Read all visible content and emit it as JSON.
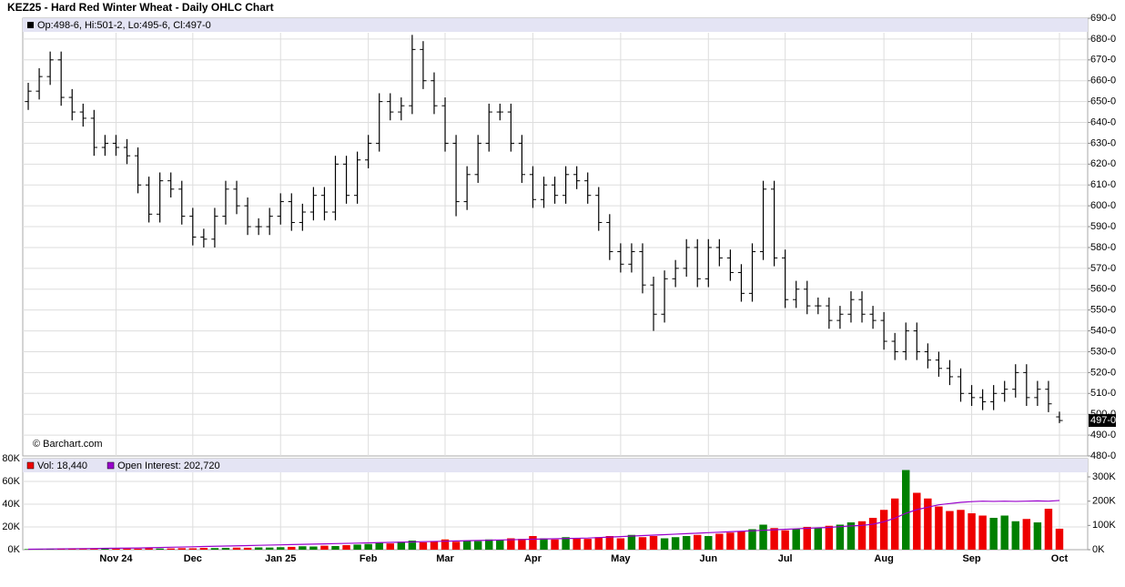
{
  "chart_data": [
    {
      "type": "ohlc",
      "title": "KEZ25 - Hard Red Winter Wheat - Daily OHLC Chart",
      "legend_text": "Op:498-6, Hi:501-2, Lo:495-6, Cl:497-0",
      "watermark": "© Barchart.com",
      "last_label": "497-0",
      "color": "#000000",
      "grid": true,
      "ylim": [
        480,
        690
      ],
      "yticks": [
        {
          "value": 480,
          "label": "480-0"
        },
        {
          "value": 490,
          "label": "490-0"
        },
        {
          "value": 500,
          "label": "500-0"
        },
        {
          "value": 510,
          "label": "510-0"
        },
        {
          "value": 520,
          "label": "520-0"
        },
        {
          "value": 530,
          "label": "530-0"
        },
        {
          "value": 540,
          "label": "540-0"
        },
        {
          "value": 550,
          "label": "550-0"
        },
        {
          "value": 560,
          "label": "560-0"
        },
        {
          "value": 570,
          "label": "570-0"
        },
        {
          "value": 580,
          "label": "580-0"
        },
        {
          "value": 590,
          "label": "590-0"
        },
        {
          "value": 600,
          "label": "600-0"
        },
        {
          "value": 610,
          "label": "610-0"
        },
        {
          "value": 620,
          "label": "620-0"
        },
        {
          "value": 630,
          "label": "630-0"
        },
        {
          "value": 640,
          "label": "640-0"
        },
        {
          "value": 650,
          "label": "650-0"
        },
        {
          "value": 660,
          "label": "660-0"
        },
        {
          "value": 670,
          "label": "670-0"
        },
        {
          "value": 680,
          "label": "680-0"
        },
        {
          "value": 690,
          "label": "690-0"
        }
      ],
      "open": [
        650,
        655,
        662,
        670,
        652,
        645,
        642,
        628,
        630,
        628,
        624,
        610,
        596,
        612,
        608,
        595,
        585,
        584,
        595,
        608,
        600,
        590,
        590,
        595,
        602,
        592,
        597,
        605,
        597,
        620,
        605,
        622,
        630,
        650,
        645,
        648,
        675,
        660,
        648,
        630,
        602,
        615,
        630,
        645,
        645,
        630,
        615,
        603,
        610,
        605,
        615,
        612,
        605,
        592,
        578,
        572,
        578,
        562,
        548,
        565,
        570,
        580,
        565,
        580,
        575,
        568,
        558,
        578,
        608,
        575,
        555,
        560,
        552,
        552,
        545,
        548,
        555,
        548,
        545,
        535,
        530,
        540,
        530,
        526,
        522,
        518,
        510,
        508,
        506,
        510,
        512,
        520,
        508,
        512,
        498.75
      ],
      "high": [
        659,
        666,
        674,
        674,
        656,
        649,
        646,
        634,
        634,
        632,
        628,
        614,
        616,
        616,
        612,
        599,
        589,
        599,
        612,
        612,
        604,
        594,
        599,
        606,
        606,
        601,
        609,
        609,
        624,
        624,
        626,
        634,
        654,
        654,
        652,
        682,
        679,
        664,
        652,
        634,
        619,
        634,
        649,
        649,
        649,
        634,
        619,
        614,
        614,
        619,
        619,
        616,
        609,
        596,
        582,
        582,
        582,
        566,
        569,
        574,
        584,
        584,
        584,
        584,
        579,
        572,
        582,
        612,
        612,
        579,
        564,
        564,
        556,
        556,
        552,
        559,
        559,
        552,
        549,
        539,
        544,
        544,
        534,
        530,
        526,
        522,
        514,
        512,
        514,
        516,
        524,
        524,
        516,
        516,
        501.25
      ],
      "low": [
        646,
        651,
        658,
        648,
        641,
        638,
        624,
        624,
        624,
        620,
        606,
        592,
        592,
        604,
        591,
        581,
        580,
        580,
        591,
        596,
        586,
        586,
        586,
        591,
        588,
        588,
        593,
        593,
        593,
        601,
        601,
        618,
        626,
        641,
        641,
        644,
        656,
        644,
        626,
        595,
        598,
        611,
        626,
        641,
        626,
        611,
        599,
        599,
        601,
        601,
        608,
        601,
        588,
        574,
        568,
        568,
        558,
        540,
        544,
        561,
        566,
        561,
        561,
        571,
        564,
        554,
        554,
        574,
        571,
        551,
        551,
        548,
        548,
        541,
        541,
        544,
        544,
        541,
        531,
        526,
        526,
        526,
        522,
        518,
        514,
        506,
        504,
        502,
        502,
        506,
        508,
        504,
        504,
        501,
        495.75
      ],
      "close": [
        655,
        662,
        670,
        652,
        645,
        642,
        628,
        630,
        628,
        624,
        610,
        596,
        612,
        608,
        595,
        585,
        584,
        595,
        608,
        600,
        590,
        590,
        595,
        602,
        592,
        597,
        605,
        597,
        620,
        605,
        622,
        630,
        650,
        645,
        648,
        675,
        660,
        648,
        630,
        602,
        615,
        630,
        645,
        645,
        630,
        615,
        603,
        610,
        605,
        615,
        612,
        605,
        592,
        578,
        572,
        578,
        562,
        548,
        565,
        570,
        580,
        565,
        580,
        575,
        568,
        558,
        578,
        608,
        575,
        555,
        560,
        552,
        552,
        545,
        548,
        555,
        548,
        545,
        535,
        530,
        540,
        530,
        526,
        522,
        518,
        510,
        508,
        506,
        510,
        512,
        520,
        508,
        512,
        505,
        497
      ]
    },
    {
      "type": "bar",
      "categories": [
        null,
        null,
        null,
        null,
        null,
        null,
        null,
        null,
        "Nov 24",
        null,
        null,
        null,
        null,
        null,
        null,
        "Dec",
        null,
        null,
        null,
        null,
        null,
        null,
        null,
        "Jan 25",
        null,
        null,
        null,
        null,
        null,
        null,
        null,
        "Feb",
        null,
        null,
        null,
        null,
        null,
        null,
        "Mar",
        null,
        null,
        null,
        null,
        null,
        null,
        null,
        "Apr",
        null,
        null,
        null,
        null,
        null,
        null,
        null,
        "May",
        null,
        null,
        null,
        null,
        null,
        null,
        null,
        "Jun",
        null,
        null,
        null,
        null,
        null,
        null,
        "Jul",
        null,
        null,
        null,
        null,
        null,
        null,
        null,
        null,
        "Aug",
        null,
        null,
        null,
        null,
        null,
        null,
        null,
        "Sep",
        null,
        null,
        null,
        null,
        null,
        null,
        null,
        "Oct"
      ],
      "up_color": "#008000",
      "grid": true,
      "ylim": [
        0,
        80000
      ],
      "yticks": [
        {
          "value": 0,
          "label": "0K"
        },
        {
          "value": 20000,
          "label": "20K"
        },
        {
          "value": 40000,
          "label": "40K"
        },
        {
          "value": 60000,
          "label": "60K"
        },
        {
          "value": 80000,
          "label": "80K"
        }
      ],
      "y2lim": [
        0,
        375000
      ],
      "y2ticks": [
        {
          "value": 0,
          "label": "0K"
        },
        {
          "value": 100000,
          "label": "100K"
        },
        {
          "value": 200000,
          "label": "200K"
        },
        {
          "value": 300000,
          "label": "300K"
        }
      ],
      "series": [
        {
          "name": "Vol: 18,440",
          "color": "#ee0000",
          "values": [
            500,
            600,
            700,
            500,
            800,
            600,
            700,
            900,
            800,
            1000,
            900,
            1200,
            1000,
            1100,
            1300,
            1200,
            1500,
            1400,
            1600,
            1800,
            1700,
            2000,
            1900,
            2200,
            2500,
            3000,
            2800,
            3500,
            3200,
            4000,
            4500,
            5000,
            6000,
            5500,
            7000,
            8000,
            6500,
            7500,
            9000,
            7000,
            8000,
            7500,
            9000,
            8500,
            10000,
            9500,
            12000,
            10000,
            9000,
            11000,
            10000,
            9500,
            11000,
            12000,
            10000,
            13000,
            11000,
            12000,
            10000,
            11000,
            12000,
            13000,
            12000,
            14000,
            15000,
            16000,
            18000,
            22000,
            19000,
            17000,
            18000,
            20000,
            19000,
            21000,
            22000,
            24000,
            25000,
            28000,
            35000,
            45000,
            70000,
            50000,
            45000,
            38000,
            34000,
            35000,
            32000,
            30000,
            28000,
            30000,
            25000,
            27000,
            24000,
            36000,
            18440
          ]
        },
        {
          "name": "Open Interest: 202,720",
          "color": "#9900cc",
          "axis": "y2",
          "values": [
            2000,
            2500,
            3000,
            3500,
            4000,
            4500,
            5000,
            5500,
            6000,
            6500,
            7000,
            8000,
            9000,
            10000,
            11000,
            12000,
            13000,
            14000,
            15000,
            16000,
            17000,
            18000,
            19000,
            20000,
            21000,
            22000,
            23000,
            24000,
            25000,
            26000,
            27000,
            28000,
            29000,
            30000,
            31000,
            32000,
            33000,
            34000,
            35000,
            36000,
            37000,
            38000,
            39000,
            40000,
            41000,
            42000,
            43000,
            44000,
            45000,
            46000,
            47000,
            48000,
            50000,
            52000,
            54000,
            56000,
            58000,
            60000,
            62000,
            64000,
            66000,
            68000,
            70000,
            72000,
            74000,
            76000,
            78000,
            80000,
            82000,
            84000,
            86000,
            88000,
            90000,
            92000,
            95000,
            98000,
            100000,
            105000,
            115000,
            130000,
            150000,
            165000,
            175000,
            185000,
            190000,
            195000,
            198000,
            200000,
            199000,
            200000,
            199000,
            200000,
            201000,
            200000,
            202720
          ]
        }
      ]
    }
  ]
}
